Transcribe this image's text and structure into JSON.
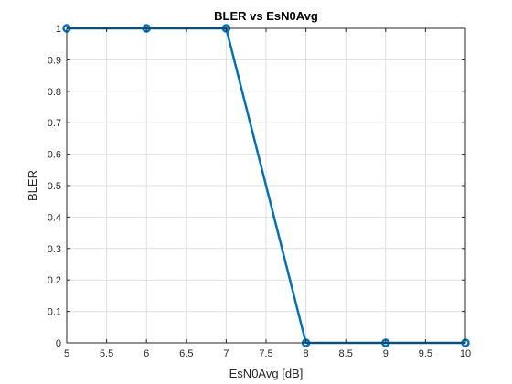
{
  "chart_data": {
    "type": "line",
    "title": "BLER vs EsN0Avg",
    "xlabel": "EsN0Avg [dB]",
    "ylabel": "BLER",
    "xlim": [
      5,
      10
    ],
    "ylim": [
      0,
      1
    ],
    "xticks": [
      5,
      5.5,
      6,
      6.5,
      7,
      7.5,
      8,
      8.5,
      9,
      9.5,
      10
    ],
    "yticks": [
      0,
      0.1,
      0.2,
      0.3,
      0.4,
      0.5,
      0.6,
      0.7,
      0.8,
      0.9,
      1
    ],
    "xtick_labels": [
      "5",
      "5.5",
      "6",
      "6.5",
      "7",
      "7.5",
      "8",
      "8.5",
      "9",
      "9.5",
      "10"
    ],
    "ytick_labels": [
      "0",
      "0.1",
      "0.2",
      "0.3",
      "0.4",
      "0.5",
      "0.6",
      "0.7",
      "0.8",
      "0.9",
      "1"
    ],
    "grid": true,
    "box": true,
    "series": [
      {
        "x": [
          5,
          6,
          7,
          8,
          9,
          10
        ],
        "y": [
          1,
          1,
          1,
          0,
          0,
          0
        ],
        "color": "#0072BD",
        "marker": "circle"
      }
    ]
  }
}
